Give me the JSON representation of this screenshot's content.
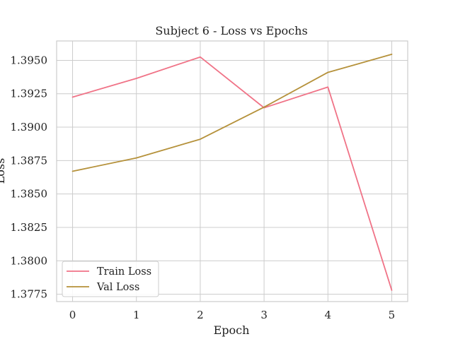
{
  "chart_data": {
    "type": "line",
    "title": "Subject 6 - Loss vs Epochs",
    "xlabel": "Epoch",
    "ylabel": "Loss",
    "x": [
      0,
      1,
      2,
      3,
      4,
      5
    ],
    "xticks": [
      "0",
      "1",
      "2",
      "3",
      "4",
      "5"
    ],
    "yticks": [
      "1.3775",
      "1.3800",
      "1.3825",
      "1.3850",
      "1.3875",
      "1.3900",
      "1.3925",
      "1.3950"
    ],
    "xlim": [
      -0.25,
      5.25
    ],
    "ylim": [
      1.37695,
      1.39645
    ],
    "grid": true,
    "legend_position": "lower-left",
    "series": [
      {
        "name": "Train Loss",
        "color": "#f07387",
        "values": [
          1.39225,
          1.39365,
          1.39525,
          1.39145,
          1.393,
          1.3778
        ]
      },
      {
        "name": "Val Loss",
        "color": "#b5913a",
        "values": [
          1.3867,
          1.3877,
          1.3891,
          1.3915,
          1.3941,
          1.39545
        ]
      }
    ]
  }
}
